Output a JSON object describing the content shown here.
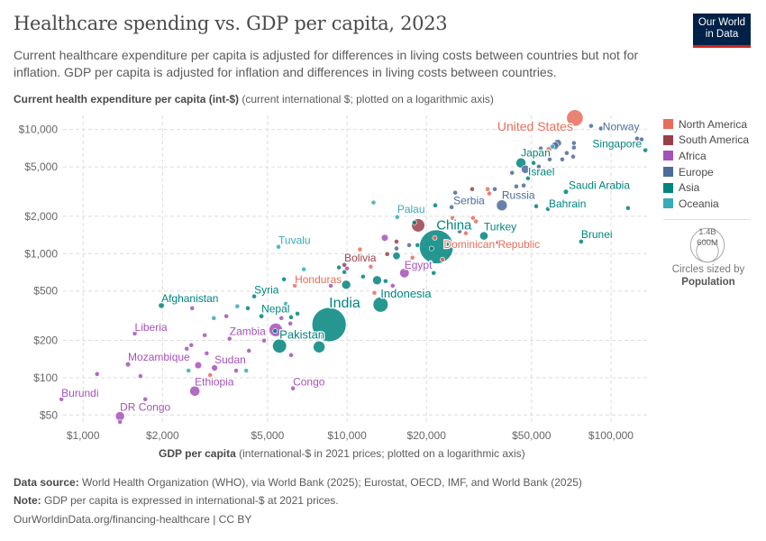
{
  "header": {
    "title": "Healthcare spending vs. GDP per capita, 2023",
    "subtitle": "Current healthcare expenditure per capita is adjusted for differences in living costs between countries but not for inflation. GDP per capita is adjusted for inflation and differences in living costs between countries.",
    "logo_text": "Our World in Data"
  },
  "chart_data": {
    "type": "scatter",
    "title": "Healthcare spending vs. GDP per capita, 2023",
    "ylabel_bold": "Current health expenditure per capita (int-$)",
    "ylabel_rest": " (current international $; plotted on a logarithmic axis)",
    "xlabel_bold": "GDP per capita",
    "xlabel_rest": " (international-$ in 2021 prices; plotted on a logarithmic axis)",
    "x_scale": "log",
    "y_scale": "log",
    "xlim": [
      840,
      137000
    ],
    "ylim": [
      42.5,
      13000
    ],
    "grid": true,
    "x_ticks": [
      {
        "v": 1000,
        "label": "$1,000"
      },
      {
        "v": 2000,
        "label": "$2,000"
      },
      {
        "v": 5000,
        "label": "$5,000"
      },
      {
        "v": 10000,
        "label": "$10,000"
      },
      {
        "v": 20000,
        "label": "$20,000"
      },
      {
        "v": 50000,
        "label": "$50,000"
      },
      {
        "v": 100000,
        "label": "$100,000"
      }
    ],
    "y_ticks": [
      {
        "v": 50,
        "label": "$50"
      },
      {
        "v": 100,
        "label": "$100"
      },
      {
        "v": 200,
        "label": "$200"
      },
      {
        "v": 500,
        "label": "$500"
      },
      {
        "v": 1000,
        "label": "$1,000"
      },
      {
        "v": 2000,
        "label": "$2,000"
      },
      {
        "v": 5000,
        "label": "$5,000"
      },
      {
        "v": 10000,
        "label": "$10,000"
      }
    ],
    "legend_position": "right",
    "regions": [
      {
        "name": "North America",
        "color": "#E56E5A"
      },
      {
        "name": "South America",
        "color": "#9A3F4A"
      },
      {
        "name": "Africa",
        "color": "#A652BA"
      },
      {
        "name": "Europe",
        "color": "#4C6A9C"
      },
      {
        "name": "Asia",
        "color": "#00847E"
      },
      {
        "name": "Oceania",
        "color": "#38AABA"
      }
    ],
    "size_legend": {
      "large": "1.4B",
      "small": "600M",
      "note": "Circles sized by",
      "variable": "Population"
    },
    "points": [
      {
        "name": "United States",
        "region": "North America",
        "x": 73000,
        "y": 12400,
        "pop": 335
      },
      {
        "name": "Norway",
        "region": "Europe",
        "x": 91600,
        "y": 10200,
        "pop": 5.5
      },
      {
        "name": "Singapore",
        "region": "Asia",
        "x": 135000,
        "y": 6810,
        "pop": 5.9
      },
      {
        "name": "Japan",
        "region": "Asia",
        "x": 45600,
        "y": 5380,
        "pop": 124
      },
      {
        "name": "Israel",
        "region": "Asia",
        "x": 50900,
        "y": 5380,
        "pop": 9.7
      },
      {
        "name": "Saudi Arabia",
        "region": "Asia",
        "x": 67500,
        "y": 3150,
        "pop": 33
      },
      {
        "name": "Bahrain",
        "region": "Asia",
        "x": 57700,
        "y": 2290,
        "pop": 1.5
      },
      {
        "name": "Russia",
        "region": "Europe",
        "x": 38600,
        "y": 2450,
        "pop": 144
      },
      {
        "name": "Serbia",
        "region": "Europe",
        "x": 24900,
        "y": 2370,
        "pop": 6.6
      },
      {
        "name": "Palau",
        "region": "Oceania",
        "x": 15500,
        "y": 1970,
        "pop": 0.02
      },
      {
        "name": "China",
        "region": "Asia",
        "x": 21800,
        "y": 1135,
        "pop": 1410
      },
      {
        "name": "Turkey",
        "region": "Asia",
        "x": 33000,
        "y": 1390,
        "pop": 85
      },
      {
        "name": "Dominican Republic",
        "region": "North America",
        "x": 21500,
        "y": 1340,
        "pop": 11
      },
      {
        "name": "Brunei",
        "region": "Asia",
        "x": 77100,
        "y": 1250,
        "pop": 0.45
      },
      {
        "name": "Tuvalu",
        "region": "Oceania",
        "x": 5500,
        "y": 1135,
        "pop": 0.01
      },
      {
        "name": "Bolivia",
        "region": "South America",
        "x": 9770,
        "y": 811,
        "pop": 12
      },
      {
        "name": "Egypt",
        "region": "Africa",
        "x": 16500,
        "y": 698,
        "pop": 113
      },
      {
        "name": "Honduras",
        "region": "North America",
        "x": 6340,
        "y": 552,
        "pop": 10
      },
      {
        "name": "Indonesia",
        "region": "Asia",
        "x": 13400,
        "y": 388,
        "pop": 278
      },
      {
        "name": "India",
        "region": "Asia",
        "x": 8550,
        "y": 268,
        "pop": 1430
      },
      {
        "name": "Afghanistan",
        "region": "Asia",
        "x": 1980,
        "y": 382,
        "pop": 42
      },
      {
        "name": "Syria",
        "region": "Asia",
        "x": 4450,
        "y": 452,
        "pop": 23
      },
      {
        "name": "Nepal",
        "region": "Asia",
        "x": 4740,
        "y": 313,
        "pop": 30
      },
      {
        "name": "Pakistan",
        "region": "Asia",
        "x": 5550,
        "y": 180,
        "pop": 240
      },
      {
        "name": "Liberia",
        "region": "Africa",
        "x": 1570,
        "y": 227,
        "pop": 5.4
      },
      {
        "name": "Zambia",
        "region": "Africa",
        "x": 3590,
        "y": 206,
        "pop": 20
      },
      {
        "name": "Mozambique",
        "region": "Africa",
        "x": 1480,
        "y": 128,
        "pop": 33
      },
      {
        "name": "Sudan",
        "region": "Africa",
        "x": 3150,
        "y": 120,
        "pop": 48
      },
      {
        "name": "Ethiopia",
        "region": "Africa",
        "x": 2650,
        "y": 78,
        "pop": 126
      },
      {
        "name": "Congo",
        "region": "Africa",
        "x": 6240,
        "y": 82,
        "pop": 6
      },
      {
        "name": "Burundi",
        "region": "Africa",
        "x": 828,
        "y": 67,
        "pop": 13
      },
      {
        "name": "DR Congo",
        "region": "Africa",
        "x": 1380,
        "y": 49,
        "pop": 102
      },
      {
        "region": "Africa",
        "x": 2590,
        "y": 363,
        "pop": 5
      },
      {
        "region": "Oceania",
        "x": 3840,
        "y": 376,
        "pop": 1
      },
      {
        "region": "Asia",
        "x": 4210,
        "y": 363,
        "pop": 5
      },
      {
        "region": "Oceania",
        "x": 3130,
        "y": 302,
        "pop": 1
      },
      {
        "region": "Africa",
        "x": 3490,
        "y": 313,
        "pop": 5
      },
      {
        "region": "Africa",
        "x": 5640,
        "y": 302,
        "pop": 5
      },
      {
        "region": "Asia",
        "x": 6140,
        "y": 307,
        "pop": 5
      },
      {
        "region": "Asia",
        "x": 6490,
        "y": 328,
        "pop": 5
      },
      {
        "region": "Oceania",
        "x": 5860,
        "y": 394,
        "pop": 1
      },
      {
        "region": "Africa",
        "x": 6100,
        "y": 273,
        "pop": 5
      },
      {
        "region": "Africa",
        "x": 5370,
        "y": 243,
        "pop": 220
      },
      {
        "region": "Asia",
        "x": 5340,
        "y": 238,
        "pop": 10
      },
      {
        "region": "Africa",
        "x": 2890,
        "y": 220,
        "pop": 5
      },
      {
        "region": "Africa",
        "x": 4850,
        "y": 199,
        "pop": 15
      },
      {
        "region": "Africa",
        "x": 2470,
        "y": 171,
        "pop": 5
      },
      {
        "region": "Africa",
        "x": 2570,
        "y": 183,
        "pop": 5
      },
      {
        "region": "Africa",
        "x": 2940,
        "y": 157,
        "pop": 5
      },
      {
        "region": "Africa",
        "x": 4250,
        "y": 165,
        "pop": 5
      },
      {
        "region": "Africa",
        "x": 6140,
        "y": 152,
        "pop": 5
      },
      {
        "region": "Asia",
        "x": 7840,
        "y": 177,
        "pop": 170
      },
      {
        "region": "Africa",
        "x": 2730,
        "y": 126,
        "pop": 60
      },
      {
        "region": "Oceania",
        "x": 2510,
        "y": 114,
        "pop": 1
      },
      {
        "region": "Africa",
        "x": 3800,
        "y": 114,
        "pop": 5
      },
      {
        "region": "Oceania",
        "x": 4150,
        "y": 114,
        "pop": 1
      },
      {
        "region": "North America",
        "x": 3030,
        "y": 105,
        "pop": 11
      },
      {
        "region": "Africa",
        "x": 1650,
        "y": 103,
        "pop": 5
      },
      {
        "region": "Africa",
        "x": 1130,
        "y": 107,
        "pop": 5
      },
      {
        "region": "Africa",
        "x": 1720,
        "y": 67,
        "pop": 5
      },
      {
        "region": "Africa",
        "x": 1380,
        "y": 44,
        "pop": 5
      },
      {
        "region": "Asia",
        "x": 9770,
        "y": 710,
        "pop": 5
      },
      {
        "region": "Asia",
        "x": 9930,
        "y": 561,
        "pop": 100
      },
      {
        "region": "Africa",
        "x": 8680,
        "y": 551,
        "pop": 10
      },
      {
        "region": "Asia",
        "x": 5770,
        "y": 621,
        "pop": 5
      },
      {
        "region": "Asia",
        "x": 11500,
        "y": 653,
        "pop": 5
      },
      {
        "region": "Asia",
        "x": 13000,
        "y": 610,
        "pop": 100
      },
      {
        "region": "Asia",
        "x": 14000,
        "y": 600,
        "pop": 5
      },
      {
        "region": "Africa",
        "x": 14900,
        "y": 551,
        "pop": 10
      },
      {
        "region": "North America",
        "x": 12700,
        "y": 483,
        "pop": 5
      },
      {
        "region": "Oceania",
        "x": 12600,
        "y": 2580,
        "pop": 1
      },
      {
        "region": "Africa",
        "x": 13900,
        "y": 1340,
        "pop": 60
      },
      {
        "region": "South America",
        "x": 15400,
        "y": 1250,
        "pop": 5
      },
      {
        "region": "Europe",
        "x": 15400,
        "y": 1100,
        "pop": 5
      },
      {
        "region": "North America",
        "x": 11200,
        "y": 1080,
        "pop": 5
      },
      {
        "region": "Europe",
        "x": 17200,
        "y": 1170,
        "pop": 5
      },
      {
        "region": "South America",
        "x": 14200,
        "y": 991,
        "pop": 5
      },
      {
        "region": "Asia",
        "x": 15400,
        "y": 959,
        "pop": 70
      },
      {
        "region": "North America",
        "x": 12300,
        "y": 785,
        "pop": 5
      },
      {
        "region": "Asia",
        "x": 9320,
        "y": 773,
        "pop": 5
      },
      {
        "region": "Africa",
        "x": 10000,
        "y": 759,
        "pop": 5
      },
      {
        "region": "Oceania",
        "x": 6860,
        "y": 747,
        "pop": 1
      },
      {
        "region": "Europe",
        "x": 84100,
        "y": 10700,
        "pop": 5
      },
      {
        "region": "Europe",
        "x": 125600,
        "y": 8460,
        "pop": 5
      },
      {
        "region": "Europe",
        "x": 130600,
        "y": 8320,
        "pop": 5
      },
      {
        "region": "Europe",
        "x": 72400,
        "y": 7780,
        "pop": 5
      },
      {
        "region": "Europe",
        "x": 72400,
        "y": 7160,
        "pop": 5
      },
      {
        "region": "Europe",
        "x": 62900,
        "y": 7780,
        "pop": 68
      },
      {
        "region": "Europe",
        "x": 61400,
        "y": 7400,
        "pop": 68
      },
      {
        "region": "Oceania",
        "x": 60000,
        "y": 7280,
        "pop": 26
      },
      {
        "region": "North America",
        "x": 58200,
        "y": 6920,
        "pop": 40
      },
      {
        "region": "Europe",
        "x": 54200,
        "y": 7040,
        "pop": 10
      },
      {
        "region": "Europe",
        "x": 68000,
        "y": 6470,
        "pop": 5
      },
      {
        "region": "Europe",
        "x": 71900,
        "y": 6050,
        "pop": 5
      },
      {
        "region": "Europe",
        "x": 65400,
        "y": 5750,
        "pop": 5
      },
      {
        "region": "Europe",
        "x": 58600,
        "y": 5750,
        "pop": 5
      },
      {
        "region": "Europe",
        "x": 53300,
        "y": 5030,
        "pop": 10
      },
      {
        "region": "Europe",
        "x": 47400,
        "y": 4790,
        "pop": 84
      },
      {
        "region": "Europe",
        "x": 42200,
        "y": 4480,
        "pop": 5
      },
      {
        "region": "Asia",
        "x": 48500,
        "y": 4050,
        "pop": 5
      },
      {
        "region": "Europe",
        "x": 43800,
        "y": 3480,
        "pop": 10
      },
      {
        "region": "Europe",
        "x": 46700,
        "y": 3540,
        "pop": 5
      },
      {
        "region": "Europe",
        "x": 36300,
        "y": 3310,
        "pop": 5
      },
      {
        "region": "North America",
        "x": 34100,
        "y": 3310,
        "pop": 5
      },
      {
        "region": "North America",
        "x": 34600,
        "y": 3050,
        "pop": 5
      },
      {
        "region": "South America",
        "x": 29800,
        "y": 3310,
        "pop": 5
      },
      {
        "region": "Europe",
        "x": 25700,
        "y": 3100,
        "pop": 5
      },
      {
        "region": "Asia",
        "x": 52100,
        "y": 2410,
        "pop": 5
      },
      {
        "region": "Asia",
        "x": 116000,
        "y": 2330,
        "pop": 5
      },
      {
        "region": "Asia",
        "x": 21600,
        "y": 2450,
        "pop": 5
      },
      {
        "region": "South America",
        "x": 18600,
        "y": 1690,
        "pop": 215
      },
      {
        "region": "Asia",
        "x": 18000,
        "y": 1780,
        "pop": 5
      },
      {
        "region": "North America",
        "x": 30000,
        "y": 1940,
        "pop": 5
      },
      {
        "region": "North America",
        "x": 30800,
        "y": 1820,
        "pop": 5
      },
      {
        "region": "North America",
        "x": 25100,
        "y": 1940,
        "pop": 5
      },
      {
        "region": "North America",
        "x": 28200,
        "y": 1460,
        "pop": 5
      },
      {
        "region": "Europe",
        "x": 26700,
        "y": 1510,
        "pop": 5
      },
      {
        "region": "South America",
        "x": 37400,
        "y": 1230,
        "pop": 5
      },
      {
        "region": "Asia",
        "x": 20900,
        "y": 1100,
        "pop": 5
      },
      {
        "region": "Asia",
        "x": 18500,
        "y": 1170,
        "pop": 5
      },
      {
        "region": "North America",
        "x": 17700,
        "y": 927,
        "pop": 5
      },
      {
        "region": "North America",
        "x": 23000,
        "y": 897,
        "pop": 5
      },
      {
        "region": "Asia",
        "x": 21300,
        "y": 698,
        "pop": 5
      }
    ]
  },
  "footer": {
    "source_label": "Data source:",
    "source_text": " World Health Organization (WHO), via World Bank (2025); Eurostat, OECD, IMF, and World Bank (2025)",
    "note_label": "Note:",
    "note_text": " GDP per capita is expressed in international-$ at 2021 prices.",
    "url": "OurWorldinData.org/financing-healthcare | CC BY"
  }
}
